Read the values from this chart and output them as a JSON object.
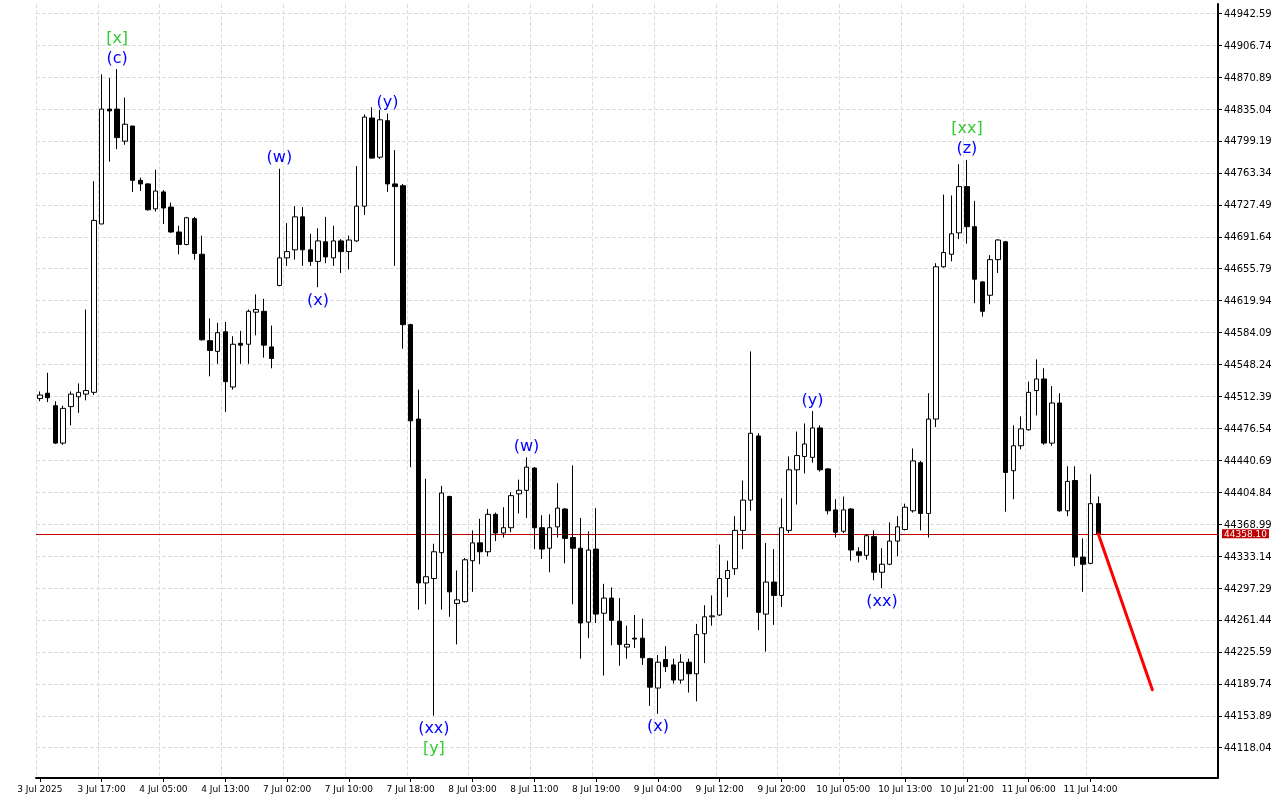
{
  "chart_data": {
    "type": "candlestick",
    "categories": [
      "3 Jul 2025",
      null,
      null,
      null,
      null,
      null,
      null,
      null,
      "3 Jul 17:00",
      null,
      null,
      null,
      null,
      null,
      null,
      null,
      "4 Jul 05:00",
      null,
      null,
      null,
      null,
      null,
      null,
      null,
      "4 Jul 13:00",
      null,
      null,
      null,
      null,
      null,
      null,
      null,
      "7 Jul 02:00",
      null,
      null,
      null,
      null,
      null,
      null,
      null,
      "7 Jul 10:00",
      null,
      null,
      null,
      null,
      null,
      null,
      null,
      "7 Jul 18:00",
      null,
      null,
      null,
      null,
      null,
      null,
      null,
      "8 Jul 03:00",
      null,
      null,
      null,
      null,
      null,
      null,
      null,
      "8 Jul 11:00",
      null,
      null,
      null,
      null,
      null,
      null,
      null,
      "8 Jul 19:00",
      null,
      null,
      null,
      null,
      null,
      null,
      null,
      "9 Jul 04:00",
      null,
      null,
      null,
      null,
      null,
      null,
      null,
      "9 Jul 12:00",
      null,
      null,
      null,
      null,
      null,
      null,
      null,
      "9 Jul 20:00",
      null,
      null,
      null,
      null,
      null,
      null,
      null,
      "10 Jul 05:00",
      null,
      null,
      null,
      null,
      null,
      null,
      null,
      "10 Jul 13:00",
      null,
      null,
      null,
      null,
      null,
      null,
      null,
      "10 Jul 21:00",
      null,
      null,
      null,
      null,
      null,
      null,
      null,
      "11 Jul 06:00",
      null,
      null,
      null,
      null,
      null,
      null,
      null,
      "11 Jul 14:00",
      null,
      null,
      null,
      null,
      null,
      null,
      null,
      null,
      null,
      null,
      null,
      null,
      null,
      null,
      null,
      null
    ],
    "series": [
      {
        "color": "#000000",
        "ohlc": [
          [
            44510,
            44518,
            44507,
            44514
          ],
          [
            44516,
            44539,
            44506,
            44511
          ],
          [
            44502,
            44507,
            44459,
            44460
          ],
          [
            44460,
            44502,
            44458,
            44499
          ],
          [
            44501,
            44518,
            44480,
            44515
          ],
          [
            44512,
            44527,
            44494,
            44517
          ],
          [
            44515,
            44610,
            44508,
            44519
          ],
          [
            44517,
            44754,
            44514,
            44710
          ],
          [
            44706,
            44874,
            44706,
            44835
          ],
          [
            44835,
            44870,
            44776,
            44833
          ],
          [
            44835,
            44880,
            44790,
            44803
          ],
          [
            44799,
            44848,
            44795,
            44818
          ],
          [
            44816,
            44816,
            44742,
            44755
          ],
          [
            44755,
            44758,
            44743,
            44751
          ],
          [
            44751,
            44752,
            44721,
            44722
          ],
          [
            44723,
            44767,
            44720,
            44743
          ],
          [
            44742,
            44744,
            44706,
            44724
          ],
          [
            44725,
            44730,
            44696,
            44697
          ],
          [
            44697,
            44704,
            44672,
            44683
          ],
          [
            44683,
            44714,
            44682,
            44713
          ],
          [
            44712,
            44714,
            44666,
            44673
          ],
          [
            44672,
            44693,
            44575,
            44576
          ],
          [
            44575,
            44600,
            44535,
            44564
          ],
          [
            44563,
            44595,
            44549,
            44584
          ],
          [
            44585,
            44596,
            44495,
            44529
          ],
          [
            44523,
            44580,
            44520,
            44571
          ],
          [
            44572,
            44586,
            44549,
            44570
          ],
          [
            44571,
            44610,
            44549,
            44608
          ],
          [
            44607,
            44627,
            44581,
            44610
          ],
          [
            44608,
            44622,
            44556,
            44570
          ],
          [
            44568,
            44592,
            44544,
            44555
          ],
          [
            44637,
            44768,
            44636,
            44668
          ],
          [
            44668,
            44707,
            44659,
            44675
          ],
          [
            44677,
            44726,
            44666,
            44714
          ],
          [
            44714,
            44725,
            44659,
            44677
          ],
          [
            44677,
            44695,
            44659,
            44664
          ],
          [
            44664,
            44701,
            44635,
            44687
          ],
          [
            44686,
            44714,
            44662,
            44669
          ],
          [
            44668,
            44704,
            44659,
            44687
          ],
          [
            44687,
            44689,
            44651,
            44675
          ],
          [
            44675,
            44693,
            44655,
            44688
          ],
          [
            44687,
            44771,
            44686,
            44726
          ],
          [
            44726,
            44829,
            44716,
            44826
          ],
          [
            44825,
            44837,
            44779,
            44780
          ],
          [
            44781,
            44834,
            44779,
            44823
          ],
          [
            44822,
            44830,
            44742,
            44751
          ],
          [
            44751,
            44789,
            44659,
            44748
          ],
          [
            44749,
            44751,
            44566,
            44593
          ],
          [
            44593,
            44594,
            44433,
            44485
          ],
          [
            44487,
            44520,
            44273,
            44303
          ],
          [
            44303,
            44420,
            44279,
            44310
          ],
          [
            44308,
            44347,
            44154,
            44338
          ],
          [
            44337,
            44412,
            44273,
            44404
          ],
          [
            44400,
            44401,
            44265,
            44293
          ],
          [
            44280,
            44317,
            44234,
            44284
          ],
          [
            44282,
            44331,
            44281,
            44329
          ],
          [
            44328,
            44362,
            44293,
            44348
          ],
          [
            44348,
            44375,
            44324,
            44338
          ],
          [
            44338,
            44386,
            44333,
            44380
          ],
          [
            44380,
            44382,
            44350,
            44359
          ],
          [
            44359,
            44388,
            44354,
            44365
          ],
          [
            44365,
            44405,
            44360,
            44401
          ],
          [
            44403,
            44419,
            44381,
            44407
          ],
          [
            44407,
            44444,
            44376,
            44433
          ],
          [
            44432,
            44433,
            44341,
            44365
          ],
          [
            44365,
            44379,
            44330,
            44341
          ],
          [
            44342,
            44380,
            44315,
            44365
          ],
          [
            44366,
            44415,
            44354,
            44387
          ],
          [
            44386,
            44387,
            44325,
            44353
          ],
          [
            44354,
            44435,
            44279,
            44342
          ],
          [
            44342,
            44376,
            44218,
            44258
          ],
          [
            44259,
            44361,
            44241,
            44340
          ],
          [
            44341,
            44387,
            44258,
            44268
          ],
          [
            44269,
            44302,
            44199,
            44286
          ],
          [
            44286,
            44298,
            44233,
            44261
          ],
          [
            44260,
            44286,
            44210,
            44234
          ],
          [
            44231,
            44255,
            44218,
            44234
          ],
          [
            44241,
            44267,
            44230,
            44240
          ],
          [
            44241,
            44263,
            44211,
            44219
          ],
          [
            44218,
            44219,
            44165,
            44186
          ],
          [
            44185,
            44222,
            44156,
            44214
          ],
          [
            44217,
            44232,
            44203,
            44209
          ],
          [
            44211,
            44218,
            44190,
            44194
          ],
          [
            44194,
            44223,
            44190,
            44214
          ],
          [
            44214,
            44218,
            44180,
            44201
          ],
          [
            44201,
            44257,
            44170,
            44245
          ],
          [
            44246,
            44278,
            44213,
            44265
          ],
          [
            44265,
            44289,
            44255,
            44266
          ],
          [
            44267,
            44346,
            44266,
            44308
          ],
          [
            44308,
            44328,
            44287,
            44317
          ],
          [
            44319,
            44378,
            44312,
            44362
          ],
          [
            44362,
            44418,
            44341,
            44396
          ],
          [
            44396,
            44563,
            44384,
            44471
          ],
          [
            44468,
            44471,
            44250,
            44270
          ],
          [
            44268,
            44348,
            44226,
            44304
          ],
          [
            44304,
            44341,
            44256,
            44289
          ],
          [
            44289,
            44398,
            44276,
            44365
          ],
          [
            44362,
            44445,
            44359,
            44430
          ],
          [
            44430,
            44473,
            44391,
            44446
          ],
          [
            44445,
            44482,
            44426,
            44459
          ],
          [
            44444,
            44496,
            44438,
            44477
          ],
          [
            44477,
            44480,
            44428,
            44430
          ],
          [
            44431,
            44432,
            44380,
            44384
          ],
          [
            44385,
            44397,
            44354,
            44360
          ],
          [
            44361,
            44400,
            44359,
            44385
          ],
          [
            44386,
            44387,
            44328,
            44340
          ],
          [
            44338,
            44343,
            44326,
            44334
          ],
          [
            44334,
            44358,
            44329,
            44356
          ],
          [
            44355,
            44362,
            44306,
            44315
          ],
          [
            44315,
            44342,
            44297,
            44324
          ],
          [
            44324,
            44371,
            44323,
            44350
          ],
          [
            44350,
            44378,
            44333,
            44366
          ],
          [
            44363,
            44392,
            44362,
            44388
          ],
          [
            44384,
            44454,
            44382,
            44440
          ],
          [
            44438,
            44440,
            44362,
            44381
          ],
          [
            44381,
            44516,
            44354,
            44487
          ],
          [
            44487,
            44662,
            44478,
            44658
          ],
          [
            44658,
            44739,
            44657,
            44674
          ],
          [
            44672,
            44738,
            44664,
            44695
          ],
          [
            44696,
            44773,
            44689,
            44748
          ],
          [
            44748,
            44778,
            44684,
            44703
          ],
          [
            44703,
            44732,
            44617,
            44644
          ],
          [
            44641,
            44642,
            44602,
            44608
          ],
          [
            44626,
            44671,
            44616,
            44666
          ],
          [
            44666,
            44689,
            44651,
            44688
          ],
          [
            44686,
            44687,
            44383,
            44427
          ],
          [
            44429,
            44480,
            44397,
            44457
          ],
          [
            44457,
            44490,
            44453,
            44476
          ],
          [
            44475,
            44529,
            44474,
            44517
          ],
          [
            44519,
            44554,
            44491,
            44532
          ],
          [
            44532,
            44544,
            44458,
            44460
          ],
          [
            44460,
            44524,
            44457,
            44505
          ],
          [
            44505,
            44516,
            44383,
            44384
          ],
          [
            44384,
            44434,
            44378,
            44417
          ],
          [
            44418,
            44434,
            44322,
            44332
          ],
          [
            44332,
            44353,
            44293,
            44324
          ],
          [
            44325,
            44425,
            44324,
            44392
          ],
          [
            44392,
            44400,
            44357,
            44358.1
          ],
          null,
          null,
          null,
          null,
          null,
          null,
          null,
          null,
          null,
          null,
          null,
          null,
          null,
          null,
          null
        ]
      },
      {
        "type": "line",
        "color": "#ff0000",
        "values": [
          null,
          null,
          null,
          null,
          null,
          null,
          null,
          null,
          null,
          null,
          null,
          null,
          null,
          null,
          null,
          null,
          null,
          null,
          null,
          null,
          null,
          null,
          null,
          null,
          null,
          null,
          null,
          null,
          null,
          null,
          null,
          null,
          null,
          null,
          null,
          null,
          null,
          null,
          null,
          null,
          null,
          null,
          null,
          null,
          null,
          null,
          null,
          null,
          null,
          null,
          null,
          null,
          null,
          null,
          null,
          null,
          null,
          null,
          null,
          null,
          null,
          null,
          null,
          null,
          null,
          null,
          null,
          null,
          null,
          null,
          null,
          null,
          null,
          null,
          null,
          null,
          null,
          null,
          null,
          null,
          null,
          null,
          null,
          null,
          null,
          null,
          null,
          null,
          null,
          null,
          null,
          null,
          null,
          null,
          null,
          null,
          null,
          null,
          null,
          null,
          null,
          null,
          null,
          null,
          null,
          null,
          null,
          null,
          null,
          null,
          null,
          null,
          null,
          null,
          null,
          null,
          null,
          null,
          null,
          null,
          null,
          null,
          null,
          null,
          null,
          null,
          null,
          null,
          null,
          null,
          null,
          null,
          null,
          null,
          null,
          null,
          null,
          44358.1,
          null,
          null,
          null,
          null,
          null,
          null,
          44183,
          null,
          null,
          null,
          null,
          null,
          null,
          null,
          null
        ]
      }
    ],
    "ylim": [
      44084,
      44953
    ],
    "yticks": [
      44118.04,
      44153.89,
      44189.74,
      44225.59,
      44261.44,
      44297.29,
      44333.14,
      44368.99,
      44404.84,
      44440.69,
      44476.54,
      44512.39,
      44548.24,
      44584.09,
      44619.94,
      44655.79,
      44691.64,
      44727.49,
      44763.34,
      44799.19,
      44835.04,
      44870.89,
      44906.74,
      44942.59
    ],
    "grid": true,
    "ref_lines": [
      {
        "axis": "y",
        "value": 44358.1,
        "label": "44358.10",
        "color": "#c00000"
      }
    ],
    "annotations": [
      {
        "text": "(c)",
        "y": 44880
      },
      {
        "text": "[x]",
        "y": 44880
      },
      {
        "text": "(w)",
        "y": 44768
      },
      {
        "text": "(x)",
        "y": 44635
      },
      {
        "text": "(y)",
        "y": 44830
      },
      {
        "text": "(xx)",
        "y": 44154
      },
      {
        "text": "[y]",
        "y": 44154
      },
      {
        "text": "(w)",
        "y": 44444
      },
      {
        "text": "(x)",
        "y": 44156
      },
      {
        "text": "(y)",
        "y": 44496
      },
      {
        "text": "(xx)",
        "y": 44297
      },
      {
        "text": "(z)",
        "y": 44778
      },
      {
        "text": "[xx]",
        "y": 44778
      }
    ]
  }
}
